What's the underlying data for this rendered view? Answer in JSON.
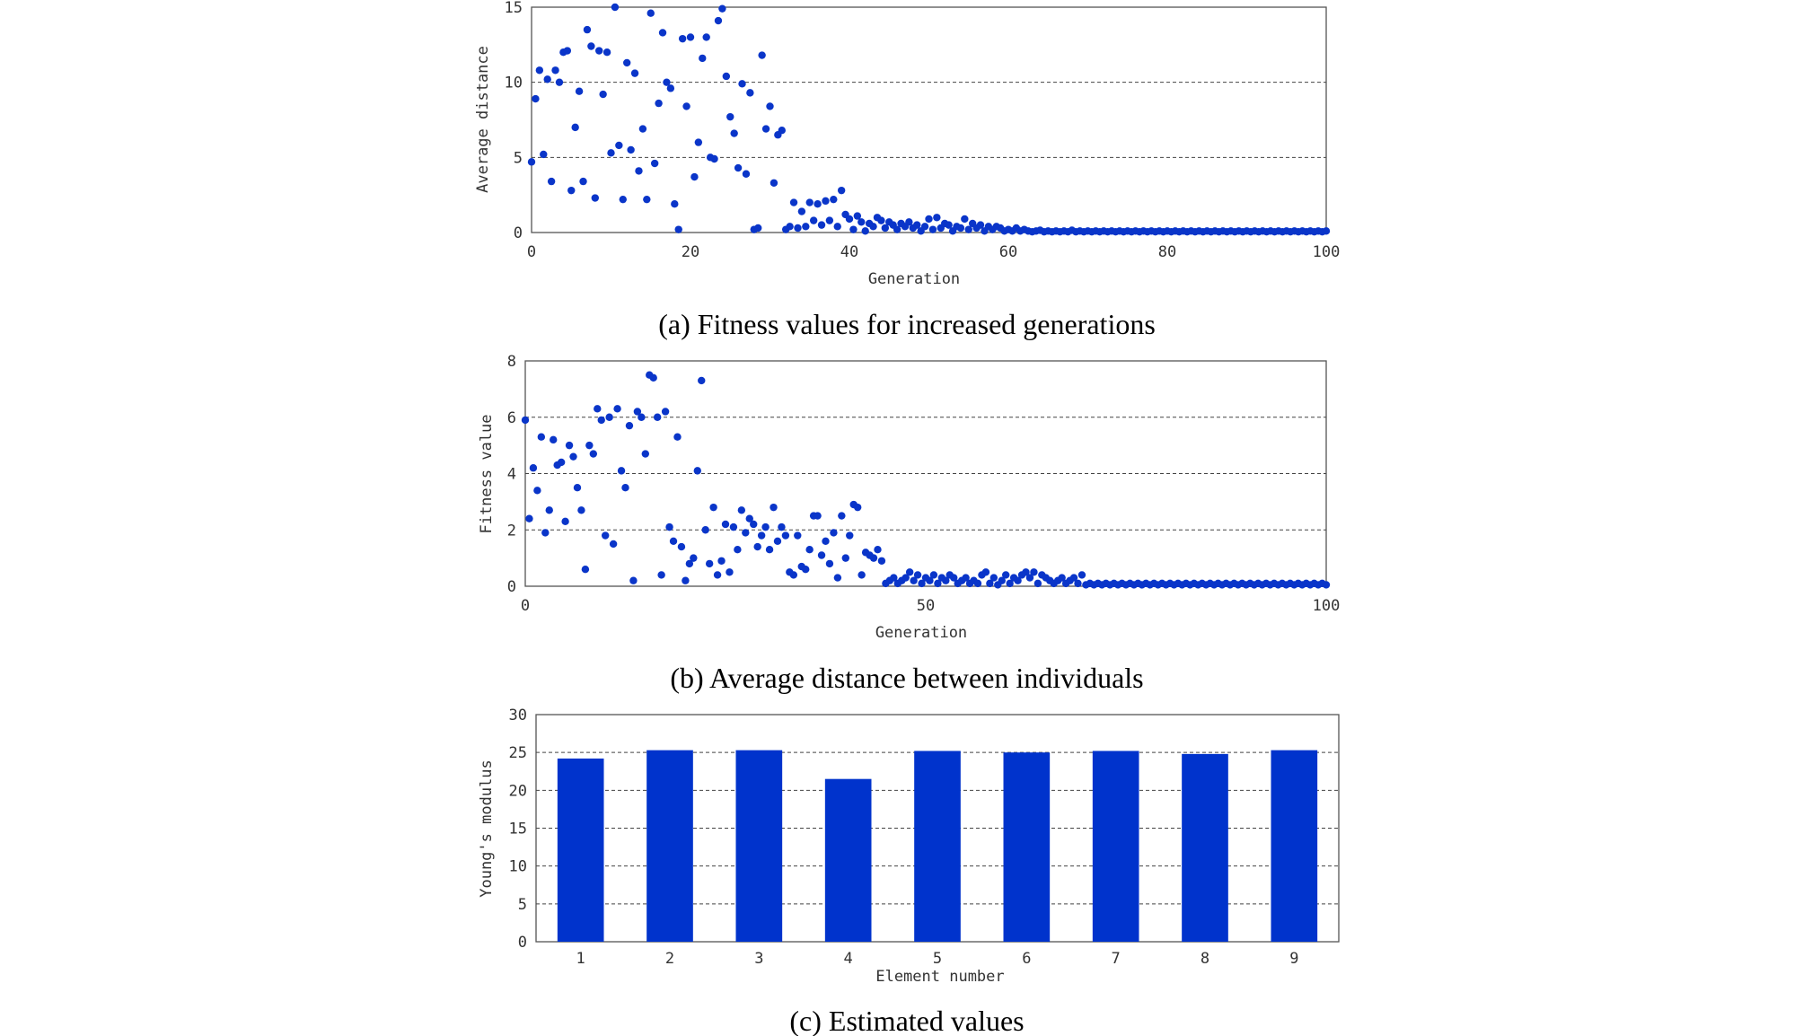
{
  "chart_data": [
    {
      "type": "scatter",
      "caption": "(a) Fitness values for increased generations",
      "xlabel": "Generation",
      "ylabel": "Average distance",
      "xlim": [
        0,
        100
      ],
      "ylim": [
        0,
        15
      ],
      "xticks": [
        0,
        20,
        40,
        60,
        80,
        100
      ],
      "yticks": [
        0,
        5,
        10,
        15
      ],
      "grid": "horizontal dashed",
      "color": "#0a35c9",
      "x": [
        0,
        0.5,
        1,
        1.5,
        2,
        2.5,
        3,
        3.5,
        4,
        4.5,
        5,
        5.5,
        6,
        6.5,
        7,
        7.5,
        8,
        8.5,
        9,
        9.5,
        10,
        10.5,
        11,
        11.5,
        12,
        12.5,
        13,
        13.5,
        14,
        14.5,
        15,
        15.5,
        16,
        16.5,
        17,
        17.5,
        18,
        18.5,
        19,
        19.5,
        20,
        20.5,
        21,
        21.5,
        22,
        22.5,
        23,
        23.5,
        24,
        24.5,
        25,
        25.5,
        26,
        26.5,
        27,
        27.5,
        28,
        28.5,
        29,
        29.5,
        30,
        30.5,
        31,
        31.5,
        32,
        32.5,
        33,
        33.5,
        34,
        34.5,
        35,
        35.5,
        36,
        36.5,
        37,
        37.5,
        38,
        38.5,
        39,
        39.5,
        40,
        40.5,
        41,
        41.5,
        42,
        42.5,
        43,
        43.5,
        44,
        44.5,
        45,
        45.5,
        46,
        46.5,
        47,
        47.5,
        48,
        48.5,
        49,
        49.5,
        50,
        50.5,
        51,
        51.5,
        52,
        52.5,
        53,
        53.5,
        54,
        54.5,
        55,
        55.5,
        56,
        56.5,
        57,
        57.5,
        58,
        58.5,
        59,
        59.5,
        60,
        60.5,
        61,
        61.5,
        62,
        62.5,
        63,
        63.5,
        64,
        64.5,
        65,
        65.5,
        66,
        66.5,
        67,
        67.5,
        68,
        68.5,
        69,
        69.5,
        70,
        70.5,
        71,
        71.5,
        72,
        72.5,
        73,
        73.5,
        74,
        74.5,
        75,
        75.5,
        76,
        76.5,
        77,
        77.5,
        78,
        78.5,
        79,
        79.5,
        80,
        80.5,
        81,
        81.5,
        82,
        82.5,
        83,
        83.5,
        84,
        84.5,
        85,
        85.5,
        86,
        86.5,
        87,
        87.5,
        88,
        88.5,
        89,
        89.5,
        90,
        90.5,
        91,
        91.5,
        92,
        92.5,
        93,
        93.5,
        94,
        94.5,
        95,
        95.5,
        96,
        96.5,
        97,
        97.5,
        98,
        98.5,
        99,
        99.5,
        100
      ],
      "y": [
        4.7,
        8.9,
        10.8,
        5.2,
        10.2,
        3.4,
        10.8,
        10.0,
        12.0,
        12.1,
        2.8,
        7.0,
        9.4,
        3.4,
        13.5,
        12.4,
        2.3,
        12.1,
        9.2,
        12.0,
        5.3,
        15.0,
        5.8,
        2.2,
        11.3,
        5.5,
        10.6,
        4.1,
        6.9,
        2.2,
        14.6,
        4.6,
        8.6,
        13.3,
        10.0,
        9.6,
        1.9,
        0.2,
        12.9,
        8.4,
        13.0,
        3.7,
        6.0,
        11.6,
        13.0,
        5.0,
        4.9,
        14.1,
        14.9,
        10.4,
        7.7,
        6.6,
        4.3,
        9.9,
        3.9,
        9.3,
        0.2,
        0.3,
        11.8,
        6.9,
        8.4,
        3.3,
        6.5,
        6.8,
        0.2,
        0.4,
        2.0,
        0.3,
        1.4,
        0.4,
        2.0,
        0.8,
        1.9,
        0.5,
        2.1,
        0.8,
        2.2,
        0.4,
        2.8,
        1.2,
        0.9,
        0.2,
        1.1,
        0.7,
        0.1,
        0.6,
        0.4,
        1.0,
        0.8,
        0.3,
        0.7,
        0.5,
        0.2,
        0.6,
        0.4,
        0.7,
        0.3,
        0.5,
        0.1,
        0.4,
        0.9,
        0.2,
        1.0,
        0.3,
        0.6,
        0.5,
        0.1,
        0.4,
        0.3,
        0.9,
        0.2,
        0.6,
        0.3,
        0.5,
        0.1,
        0.4,
        0.2,
        0.4,
        0.3,
        0.1,
        0.2,
        0.1,
        0.3,
        0.1,
        0.2,
        0.1,
        0.05,
        0.1,
        0.15,
        0.05,
        0.1,
        0.05,
        0.1,
        0.05,
        0.1,
        0.05,
        0.15,
        0.05,
        0.1,
        0.05,
        0.1,
        0.05,
        0.1,
        0.05,
        0.1,
        0.05,
        0.1,
        0.05,
        0.1,
        0.05,
        0.1,
        0.05,
        0.1,
        0.05,
        0.1,
        0.05,
        0.1,
        0.05,
        0.1,
        0.05,
        0.1,
        0.05,
        0.1,
        0.05,
        0.1,
        0.05,
        0.1,
        0.05,
        0.1,
        0.05,
        0.1,
        0.05,
        0.1,
        0.05,
        0.1,
        0.05,
        0.1,
        0.05,
        0.1,
        0.05,
        0.1,
        0.05,
        0.1,
        0.05,
        0.1,
        0.05,
        0.1,
        0.05,
        0.1,
        0.05,
        0.1,
        0.05,
        0.1,
        0.05,
        0.1,
        0.05,
        0.1,
        0.05,
        0.1,
        0.05,
        0.1
      ]
    },
    {
      "type": "scatter",
      "caption": "(b) Average distance between individuals",
      "xlabel": "Generation",
      "ylabel": "Fitness value",
      "xlim": [
        0,
        100
      ],
      "ylim": [
        0,
        8
      ],
      "xticks": [
        0,
        50,
        100
      ],
      "yticks": [
        0,
        2,
        4,
        6,
        8
      ],
      "grid": "horizontal dashed",
      "color": "#0a35c9",
      "x": [
        0,
        0.5,
        1,
        1.5,
        2,
        2.5,
        3,
        3.5,
        4,
        4.5,
        5,
        5.5,
        6,
        6.5,
        7,
        7.5,
        8,
        8.5,
        9,
        9.5,
        10,
        10.5,
        11,
        11.5,
        12,
        12.5,
        13,
        13.5,
        14,
        14.5,
        15,
        15.5,
        16,
        16.5,
        17,
        17.5,
        18,
        18.5,
        19,
        19.5,
        20,
        20.5,
        21,
        21.5,
        22,
        22.5,
        23,
        23.5,
        24,
        24.5,
        25,
        25.5,
        26,
        26.5,
        27,
        27.5,
        28,
        28.5,
        29,
        29.5,
        30,
        30.5,
        31,
        31.5,
        32,
        32.5,
        33,
        33.5,
        34,
        34.5,
        35,
        35.5,
        36,
        36.5,
        37,
        37.5,
        38,
        38.5,
        39,
        39.5,
        40,
        40.5,
        41,
        41.5,
        42,
        42.5,
        43,
        43.5,
        44,
        44.5,
        45,
        45.5,
        46,
        46.5,
        47,
        47.5,
        48,
        48.5,
        49,
        49.5,
        50,
        50.5,
        51,
        51.5,
        52,
        52.5,
        53,
        53.5,
        54,
        54.5,
        55,
        55.5,
        56,
        56.5,
        57,
        57.5,
        58,
        58.5,
        59,
        59.5,
        60,
        60.5,
        61,
        61.5,
        62,
        62.5,
        63,
        63.5,
        64,
        64.5,
        65,
        65.5,
        66,
        66.5,
        67,
        67.5,
        68,
        68.5,
        69,
        69.5,
        70,
        70.5,
        71,
        71.5,
        72,
        72.5,
        73,
        73.5,
        74,
        74.5,
        75,
        75.5,
        76,
        76.5,
        77,
        77.5,
        78,
        78.5,
        79,
        79.5,
        80,
        80.5,
        81,
        81.5,
        82,
        82.5,
        83,
        83.5,
        84,
        84.5,
        85,
        85.5,
        86,
        86.5,
        87,
        87.5,
        88,
        88.5,
        89,
        89.5,
        90,
        90.5,
        91,
        91.5,
        92,
        92.5,
        93,
        93.5,
        94,
        94.5,
        95,
        95.5,
        96,
        96.5,
        97,
        97.5,
        98,
        98.5,
        99,
        99.5,
        100
      ],
      "y": [
        5.9,
        2.4,
        4.2,
        3.4,
        5.3,
        1.9,
        2.7,
        5.2,
        4.3,
        4.4,
        2.3,
        5.0,
        4.6,
        3.5,
        2.7,
        0.6,
        5.0,
        4.7,
        6.3,
        5.9,
        1.8,
        6.0,
        1.5,
        6.3,
        4.1,
        3.5,
        5.7,
        0.2,
        6.2,
        6.0,
        4.7,
        7.5,
        7.4,
        6.0,
        0.4,
        6.2,
        2.1,
        1.6,
        5.3,
        1.4,
        0.2,
        0.8,
        1.0,
        4.1,
        7.3,
        2.0,
        0.8,
        2.8,
        0.4,
        0.9,
        2.2,
        0.5,
        2.1,
        1.3,
        2.7,
        1.9,
        2.4,
        2.2,
        1.4,
        1.8,
        2.1,
        1.3,
        2.8,
        1.6,
        2.1,
        1.8,
        0.5,
        0.4,
        1.8,
        0.7,
        0.6,
        1.3,
        2.5,
        2.5,
        1.1,
        1.6,
        0.8,
        1.9,
        0.3,
        2.5,
        1.0,
        1.8,
        2.9,
        2.8,
        0.4,
        1.2,
        1.1,
        1.0,
        1.3,
        0.9,
        0.1,
        0.2,
        0.3,
        0.1,
        0.2,
        0.3,
        0.5,
        0.2,
        0.4,
        0.1,
        0.3,
        0.2,
        0.4,
        0.1,
        0.3,
        0.2,
        0.4,
        0.3,
        0.1,
        0.2,
        0.3,
        0.1,
        0.2,
        0.1,
        0.4,
        0.5,
        0.1,
        0.3,
        0.05,
        0.2,
        0.4,
        0.1,
        0.3,
        0.2,
        0.4,
        0.5,
        0.3,
        0.5,
        0.1,
        0.4,
        0.3,
        0.2,
        0.1,
        0.2,
        0.3,
        0.1,
        0.2,
        0.3,
        0.1,
        0.4,
        0.05,
        0.1,
        0.05,
        0.1,
        0.05,
        0.1,
        0.05,
        0.1,
        0.05,
        0.1,
        0.05,
        0.1,
        0.05,
        0.1,
        0.05,
        0.1,
        0.05,
        0.1,
        0.05,
        0.1,
        0.05,
        0.1,
        0.05,
        0.1,
        0.05,
        0.1,
        0.05,
        0.1,
        0.05,
        0.1,
        0.05,
        0.1,
        0.05,
        0.1,
        0.05,
        0.1,
        0.05,
        0.1,
        0.05,
        0.1,
        0.05,
        0.1,
        0.05,
        0.1,
        0.05,
        0.1,
        0.05,
        0.1,
        0.05,
        0.1,
        0.05,
        0.1,
        0.05,
        0.1,
        0.05,
        0.1,
        0.05,
        0.1,
        0.05,
        0.1,
        0.05
      ]
    },
    {
      "type": "bar",
      "caption": "(c) Estimated values",
      "xlabel": "Element number",
      "ylabel": "Young's modulus",
      "categories": [
        "1",
        "2",
        "3",
        "4",
        "5",
        "6",
        "7",
        "8",
        "9"
      ],
      "values": [
        24.2,
        25.3,
        25.3,
        21.5,
        25.2,
        25.0,
        25.2,
        24.8,
        25.3
      ],
      "ylim": [
        0,
        30
      ],
      "yticks": [
        0,
        5,
        10,
        15,
        20,
        25,
        30
      ],
      "grid": "horizontal dashed",
      "color": "#0033cc"
    }
  ]
}
